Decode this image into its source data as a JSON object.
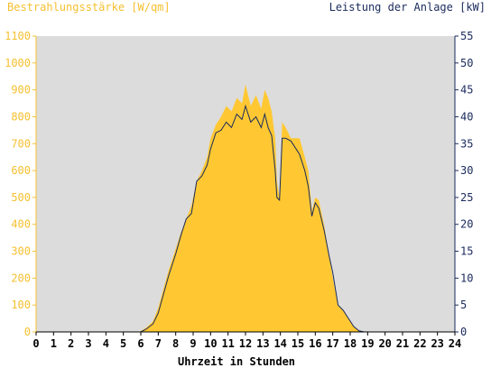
{
  "chart_data": {
    "type": "area",
    "title_left": "Bestrahlungsstärke [W/qm]",
    "title_right": "Leistung der Anlage [kW]",
    "xlabel": "Uhrzeit in Stunden",
    "xlim": [
      0,
      24
    ],
    "ylim_left": [
      0,
      1100
    ],
    "ylim_right": [
      0,
      55
    ],
    "x_ticks": [
      "0",
      "1",
      "2",
      "3",
      "4",
      "5",
      "6",
      "7",
      "8",
      "9",
      "10",
      "11",
      "12",
      "13",
      "14",
      "15",
      "16",
      "17",
      "18",
      "19",
      "20",
      "21",
      "22",
      "23",
      "24"
    ],
    "y_left_ticks": [
      "0",
      "100",
      "200",
      "300",
      "400",
      "500",
      "600",
      "700",
      "800",
      "900",
      "1000",
      "1100"
    ],
    "y_right_ticks": [
      "0",
      "5",
      "10",
      "15",
      "20",
      "25",
      "30",
      "35",
      "40",
      "45",
      "50",
      "55"
    ],
    "grid": false,
    "colors": {
      "irradiance": "#ffc832",
      "power": "#1a2a5c",
      "plot_bg": "#dcdcdc",
      "left_axis": "#f5c030",
      "right_axis": "#1a2a5c"
    },
    "series": [
      {
        "name": "Bestrahlungsstärke",
        "axis": "left",
        "x": [
          0,
          5.9,
          6.3,
          6.7,
          7.0,
          7.3,
          7.6,
          8.0,
          8.3,
          8.6,
          8.9,
          9.2,
          9.5,
          9.8,
          10.0,
          10.3,
          10.6,
          10.9,
          11.2,
          11.5,
          11.8,
          12.0,
          12.15,
          12.3,
          12.6,
          12.9,
          13.1,
          13.3,
          13.5,
          13.7,
          13.8,
          13.95,
          14.1,
          14.3,
          14.6,
          14.9,
          15.1,
          15.4,
          15.6,
          15.8,
          16.0,
          16.2,
          16.5,
          16.8,
          17.0,
          17.3,
          17.6,
          17.9,
          18.2,
          18.5,
          18.8,
          19.0,
          19.2,
          24
        ],
        "y": [
          0,
          0,
          15,
          40,
          90,
          160,
          230,
          310,
          370,
          420,
          470,
          560,
          600,
          650,
          720,
          770,
          800,
          840,
          820,
          870,
          850,
          920,
          880,
          840,
          880,
          830,
          900,
          870,
          820,
          720,
          560,
          500,
          780,
          760,
          720,
          720,
          720,
          650,
          600,
          450,
          500,
          490,
          400,
          280,
          200,
          100,
          80,
          50,
          20,
          5,
          0,
          0,
          0,
          0
        ]
      },
      {
        "name": "Leistung der Anlage",
        "axis": "right",
        "x": [
          0,
          6.0,
          6.3,
          6.7,
          7.0,
          7.3,
          7.6,
          8.0,
          8.3,
          8.6,
          8.9,
          9.2,
          9.5,
          9.8,
          10.0,
          10.3,
          10.6,
          10.9,
          11.2,
          11.5,
          11.8,
          12.0,
          12.15,
          12.3,
          12.6,
          12.9,
          13.1,
          13.3,
          13.5,
          13.7,
          13.8,
          13.95,
          14.1,
          14.3,
          14.6,
          14.9,
          15.1,
          15.4,
          15.6,
          15.8,
          16.0,
          16.2,
          16.5,
          16.8,
          17.0,
          17.3,
          17.6,
          17.9,
          18.2,
          18.5,
          18.8,
          19.0,
          19.2,
          24
        ],
        "y": [
          0,
          0,
          0.5,
          1.5,
          3.5,
          7,
          10.5,
          14.5,
          18,
          21,
          22,
          28,
          29,
          31,
          34,
          37,
          37.5,
          39,
          38,
          40.5,
          39.5,
          42,
          40.5,
          39,
          40,
          38,
          40.5,
          38,
          36.5,
          30,
          25,
          24.5,
          36,
          36,
          35.5,
          34,
          33,
          30,
          27,
          21.5,
          24,
          23,
          19,
          14,
          11,
          5,
          4,
          2.5,
          1,
          0.2,
          0,
          0,
          0,
          0
        ]
      }
    ]
  }
}
